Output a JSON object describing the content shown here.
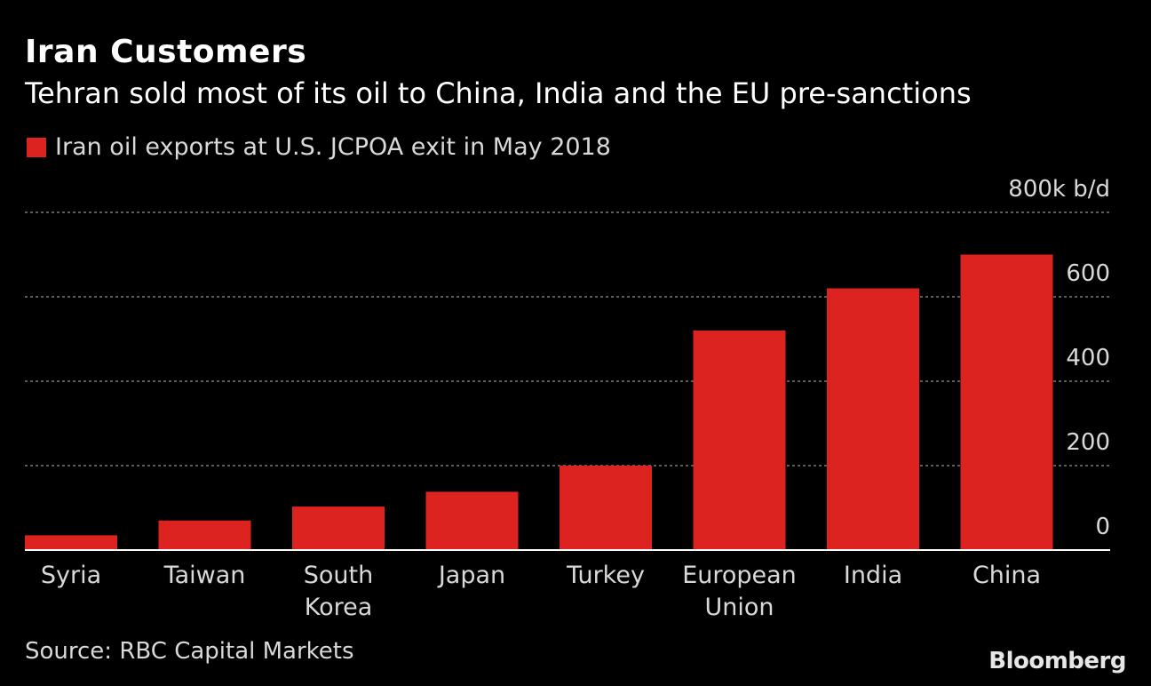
{
  "header": {
    "title": "Iran Customers",
    "subtitle": "Tehran sold most of its oil to China, India and the EU pre-sanctions"
  },
  "legend": {
    "label": "Iran oil exports at U.S. JCPOA exit in May 2018",
    "color": "#dc2320"
  },
  "footer": {
    "source": "Source: RBC Capital Markets",
    "brand": "Bloomberg"
  },
  "chart_data": {
    "type": "bar",
    "categories": [
      [
        "Syria"
      ],
      [
        "Taiwan"
      ],
      [
        "South",
        "Korea"
      ],
      [
        "Japan"
      ],
      [
        "Turkey"
      ],
      [
        "European",
        "Union"
      ],
      [
        "India"
      ],
      [
        "China"
      ]
    ],
    "series": [
      {
        "name": "Iran oil exports at U.S. JCPOA exit in May 2018",
        "values": [
          35,
          70,
          103,
          138,
          200,
          520,
          620,
          700
        ],
        "color": "#dc2320"
      }
    ],
    "y_unit_label": "800k b/d",
    "y_ticks": [
      0,
      200,
      400,
      600
    ],
    "ylim": [
      0,
      800
    ],
    "grid": true,
    "legend_position": "top-left",
    "axis_side": "right"
  }
}
